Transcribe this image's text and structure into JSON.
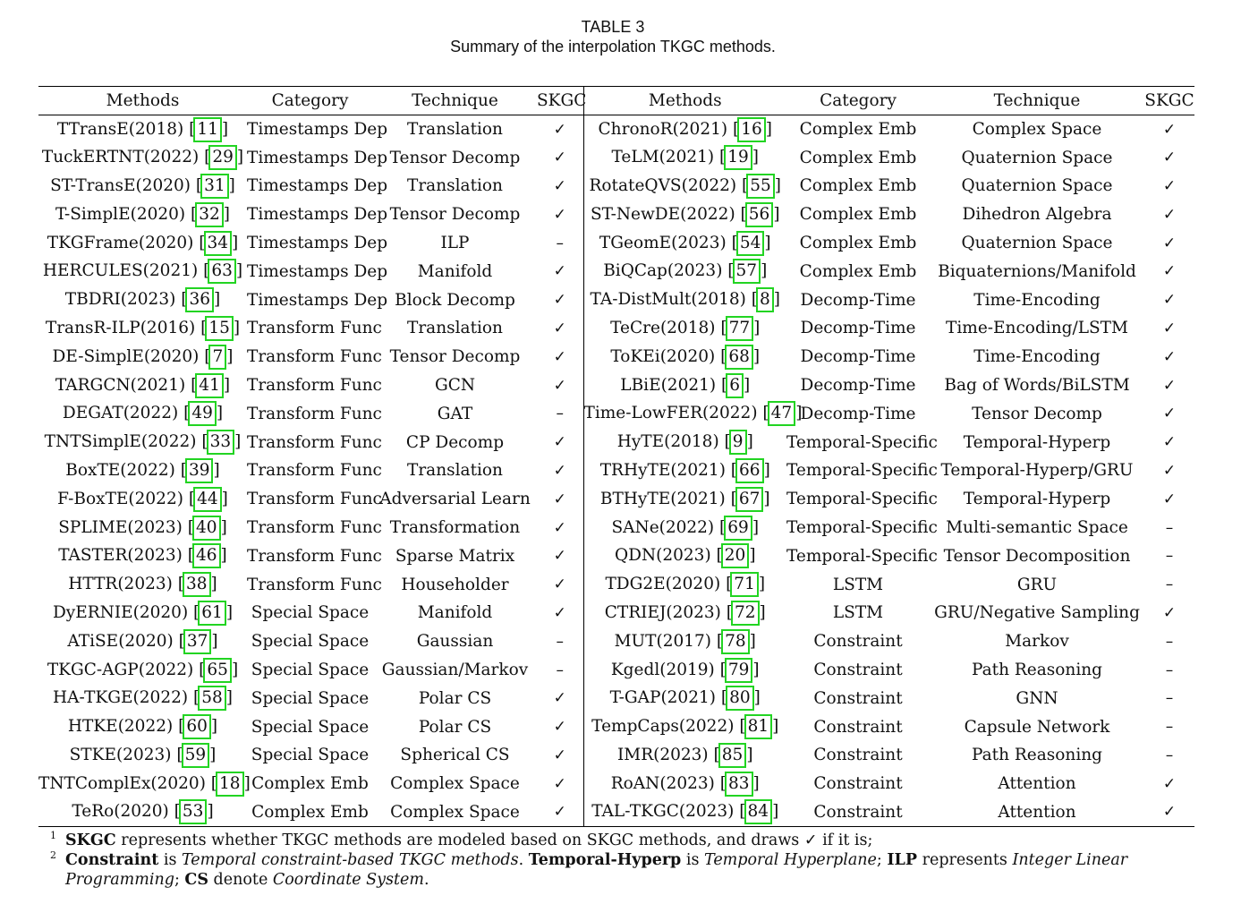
{
  "caption": {
    "table_number": "TABLE 3",
    "title": "Summary of the interpolation TKGC methods."
  },
  "headers": [
    "Methods",
    "Category",
    "Technique",
    "SKGC",
    "Methods",
    "Category",
    "Technique",
    "SKGC"
  ],
  "left_rows": [
    {
      "method": "TTransE(2018)",
      "ref": "11",
      "category": "Timestamps Dep",
      "technique": "Translation",
      "skgc": "✓"
    },
    {
      "method": "TuckERTNT(2022)",
      "ref": "29",
      "category": "Timestamps Dep",
      "technique": "Tensor Decomp",
      "skgc": "✓"
    },
    {
      "method": "ST-TransE(2020)",
      "ref": "31",
      "category": "Timestamps Dep",
      "technique": "Translation",
      "skgc": "✓"
    },
    {
      "method": "T-SimplE(2020)",
      "ref": "32",
      "category": "Timestamps Dep",
      "technique": "Tensor Decomp",
      "skgc": "✓"
    },
    {
      "method": "TKGFrame(2020)",
      "ref": "34",
      "category": "Timestamps Dep",
      "technique": "ILP",
      "skgc": "–"
    },
    {
      "method": "HERCULES(2021)",
      "ref": "63",
      "category": "Timestamps Dep",
      "technique": "Manifold",
      "skgc": "✓"
    },
    {
      "method": "TBDRI(2023)",
      "ref": "36",
      "category": "Timestamps Dep",
      "technique": "Block Decomp",
      "skgc": "✓"
    },
    {
      "method": "TransR-ILP(2016)",
      "ref": "15",
      "category": "Transform Func",
      "technique": "Translation",
      "skgc": "✓"
    },
    {
      "method": "DE-SimplE(2020)",
      "ref": "7",
      "category": "Transform Func",
      "technique": "Tensor Decomp",
      "skgc": "✓"
    },
    {
      "method": "TARGCN(2021)",
      "ref": "41",
      "category": "Transform Func",
      "technique": "GCN",
      "skgc": "✓"
    },
    {
      "method": "DEGAT(2022)",
      "ref": "49",
      "category": "Transform Func",
      "technique": "GAT",
      "skgc": "–"
    },
    {
      "method": "TNTSimplE(2022)",
      "ref": "33",
      "category": "Transform Func",
      "technique": "CP Decomp",
      "skgc": "✓"
    },
    {
      "method": "BoxTE(2022)",
      "ref": "39",
      "category": "Transform Func",
      "technique": "Translation",
      "skgc": "✓"
    },
    {
      "method": "F-BoxTE(2022)",
      "ref": "44",
      "category": "Transform Func",
      "technique": "Adversarial Learn",
      "skgc": "✓"
    },
    {
      "method": "SPLIME(2023)",
      "ref": "40",
      "category": "Transform Func",
      "technique": "Transformation",
      "skgc": "✓"
    },
    {
      "method": "TASTER(2023)",
      "ref": "46",
      "category": "Transform Func",
      "technique": "Sparse Matrix",
      "skgc": "✓"
    },
    {
      "method": "HTTR(2023)",
      "ref": "38",
      "category": "Transform Func",
      "technique": "Householder",
      "skgc": "✓"
    },
    {
      "method": "DyERNIE(2020)",
      "ref": "61",
      "category": "Special Space",
      "technique": "Manifold",
      "skgc": "✓"
    },
    {
      "method": "ATiSE(2020)",
      "ref": "37",
      "category": "Special Space",
      "technique": "Gaussian",
      "skgc": "–"
    },
    {
      "method": "TKGC-AGP(2022)",
      "ref": "65",
      "category": "Special Space",
      "technique": "Gaussian/Markov",
      "skgc": "–"
    },
    {
      "method": "HA-TKGE(2022)",
      "ref": "58",
      "category": "Special Space",
      "technique": "Polar CS",
      "skgc": "✓"
    },
    {
      "method": "HTKE(2022)",
      "ref": "60",
      "category": "Special Space",
      "technique": "Polar CS",
      "skgc": "✓"
    },
    {
      "method": "STKE(2023)",
      "ref": "59",
      "category": "Special Space",
      "technique": "Spherical CS",
      "skgc": "✓"
    },
    {
      "method": "TNTComplEx(2020)",
      "ref": "18",
      "category": "Complex Emb",
      "technique": "Complex Space",
      "skgc": "✓"
    },
    {
      "method": "TeRo(2020)",
      "ref": "53",
      "category": "Complex Emb",
      "technique": "Complex Space",
      "skgc": "✓"
    }
  ],
  "right_rows": [
    {
      "method": "ChronoR(2021)",
      "ref": "16",
      "category": "Complex Emb",
      "technique": "Complex Space",
      "skgc": "✓"
    },
    {
      "method": "TeLM(2021)",
      "ref": "19",
      "category": "Complex Emb",
      "technique": "Quaternion Space",
      "skgc": "✓"
    },
    {
      "method": "RotateQVS(2022)",
      "ref": "55",
      "category": "Complex Emb",
      "technique": "Quaternion Space",
      "skgc": "✓"
    },
    {
      "method": "ST-NewDE(2022)",
      "ref": "56",
      "category": "Complex Emb",
      "technique": "Dihedron Algebra",
      "skgc": "✓"
    },
    {
      "method": "TGeomE(2023)",
      "ref": "54",
      "category": "Complex Emb",
      "technique": "Quaternion Space",
      "skgc": "✓"
    },
    {
      "method": "BiQCap(2023)",
      "ref": "57",
      "category": "Complex Emb",
      "technique": "Biquaternions/Manifold",
      "skgc": "✓"
    },
    {
      "method": "TA-DistMult(2018)",
      "ref": "8",
      "category": "Decomp-Time",
      "technique": "Time-Encoding",
      "skgc": "✓"
    },
    {
      "method": "TeCre(2018)",
      "ref": "77",
      "category": "Decomp-Time",
      "technique": "Time-Encoding/LSTM",
      "skgc": "✓"
    },
    {
      "method": "ToKEi(2020)",
      "ref": "68",
      "category": "Decomp-Time",
      "technique": "Time-Encoding",
      "skgc": "✓"
    },
    {
      "method": "LBiE(2021)",
      "ref": "6",
      "category": "Decomp-Time",
      "technique": "Bag of Words/BiLSTM",
      "skgc": "✓"
    },
    {
      "method": "Time-LowFER(2022)",
      "ref": "47",
      "category": "Decomp-Time",
      "technique": "Tensor Decomp",
      "skgc": "✓"
    },
    {
      "method": "HyTE(2018)",
      "ref": "9",
      "category": "Temporal-Specific",
      "technique": "Temporal-Hyperp",
      "skgc": "✓"
    },
    {
      "method": "TRHyTE(2021)",
      "ref": "66",
      "category": "Temporal-Specific",
      "technique": "Temporal-Hyperp/GRU",
      "skgc": "✓"
    },
    {
      "method": "BTHyTE(2021)",
      "ref": "67",
      "category": "Temporal-Specific",
      "technique": "Temporal-Hyperp",
      "skgc": "✓"
    },
    {
      "method": "SANe(2022)",
      "ref": "69",
      "category": "Temporal-Specific",
      "technique": "Multi-semantic Space",
      "skgc": "–"
    },
    {
      "method": "QDN(2023)",
      "ref": "20",
      "category": "Temporal-Specific",
      "technique": "Tensor Decomposition",
      "skgc": "–"
    },
    {
      "method": "TDG2E(2020)",
      "ref": "71",
      "category": "LSTM",
      "technique": "GRU",
      "skgc": "–"
    },
    {
      "method": "CTRIEJ(2023)",
      "ref": "72",
      "category": "LSTM",
      "technique": "GRU/Negative Sampling",
      "skgc": "✓"
    },
    {
      "method": "MUT(2017)",
      "ref": "78",
      "category": "Constraint",
      "technique": "Markov",
      "skgc": "–"
    },
    {
      "method": "Kgedl(2019)",
      "ref": "79",
      "category": "Constraint",
      "technique": "Path Reasoning",
      "skgc": "–"
    },
    {
      "method": "T-GAP(2021)",
      "ref": "80",
      "category": "Constraint",
      "technique": "GNN",
      "skgc": "–"
    },
    {
      "method": "TempCaps(2022)",
      "ref": "81",
      "category": "Constraint",
      "technique": "Capsule Network",
      "skgc": "–"
    },
    {
      "method": "IMR(2023)",
      "ref": "85",
      "category": "Constraint",
      "technique": "Path Reasoning",
      "skgc": "–"
    },
    {
      "method": "RoAN(2023)",
      "ref": "83",
      "category": "Constraint",
      "technique": "Attention",
      "skgc": "✓"
    },
    {
      "method": "TAL-TKGC(2023)",
      "ref": "84",
      "category": "Constraint",
      "technique": "Attention",
      "skgc": "✓"
    }
  ],
  "footnotes": {
    "fn1": {
      "num": "1",
      "term": "SKGC",
      "text": " represents whether TKGC methods are modeled based on SKGC methods, and draws ✓ if it is;"
    },
    "fn2": {
      "num": "2",
      "t1": "Constraint",
      "s1": " is ",
      "i1": "Temporal constraint-based TKGC methods",
      "s2": ". ",
      "t2": "Temporal-Hyperp",
      "s3": " is ",
      "i2": "Temporal Hyperplane",
      "s4": "; ",
      "t3": "ILP",
      "s5": " represents ",
      "i3": "Integer Linear Programming",
      "s6": "; ",
      "t4": "CS",
      "s7": " denote ",
      "i4": "Coordinate System",
      "s8": "."
    }
  },
  "colors": {
    "citation_box": "#22d422",
    "text": "#111111",
    "rule": "#000000"
  }
}
